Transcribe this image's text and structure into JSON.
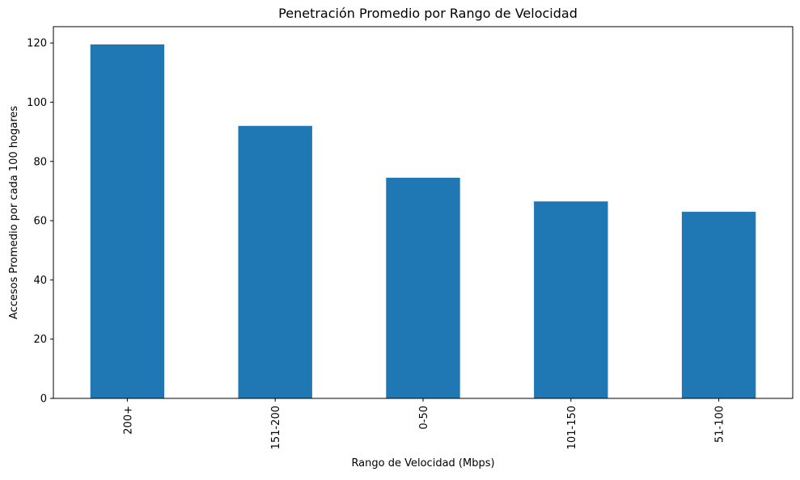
{
  "chart_data": {
    "type": "bar",
    "title": "Penetración Promedio por Rango de Velocidad",
    "xlabel": "Rango de Velocidad (Mbps)",
    "ylabel": "Accesos Promedio por cada 100 hogares",
    "categories": [
      "200+",
      "151-200",
      "0-50",
      "101-150",
      "51-100"
    ],
    "values": [
      119.5,
      92.0,
      74.5,
      66.5,
      63.0
    ],
    "ylim": [
      0,
      125.5
    ],
    "yticks": [
      0,
      20,
      40,
      60,
      80,
      100,
      120
    ],
    "bar_color": "#1f77b4",
    "grid": false,
    "legend": "none",
    "xtick_rotation": "vertical"
  }
}
